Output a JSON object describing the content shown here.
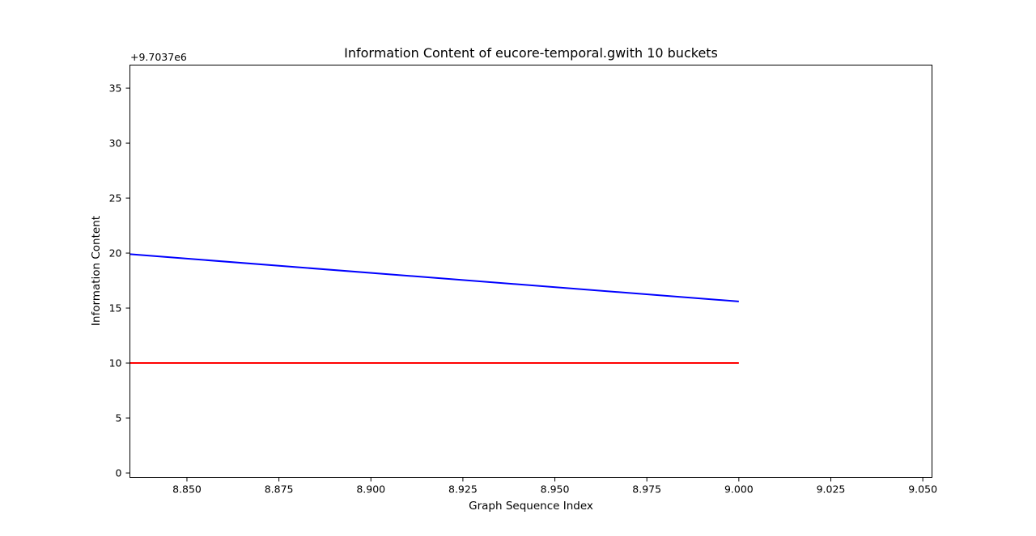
{
  "chart_data": {
    "type": "line",
    "title": "Information Content of eucore-temporal.gwith 10 buckets",
    "xlabel": "Graph Sequence Index",
    "ylabel": "Information Content",
    "y_offset_label": "+9.7037e6",
    "xlim": [
      8.8345,
      9.0525
    ],
    "ylim": [
      -0.4,
      37.1
    ],
    "xticks": [
      8.85,
      8.875,
      8.9,
      8.925,
      8.95,
      8.975,
      9.0,
      9.025,
      9.05
    ],
    "xtick_labels": [
      "8.850",
      "8.875",
      "8.900",
      "8.925",
      "8.950",
      "8.975",
      "9.000",
      "9.025",
      "9.050"
    ],
    "yticks": [
      0,
      5,
      10,
      15,
      20,
      25,
      30,
      35
    ],
    "ytick_labels": [
      "0",
      "5",
      "10",
      "15",
      "20",
      "25",
      "30",
      "35"
    ],
    "grid": false,
    "series": [
      {
        "color": "#0000ff",
        "x": [
          8.8345,
          9.0
        ],
        "y": [
          19.9,
          15.6
        ]
      },
      {
        "color": "#ff0000",
        "x": [
          8.8345,
          9.0
        ],
        "y": [
          10.0,
          10.0
        ]
      }
    ]
  }
}
